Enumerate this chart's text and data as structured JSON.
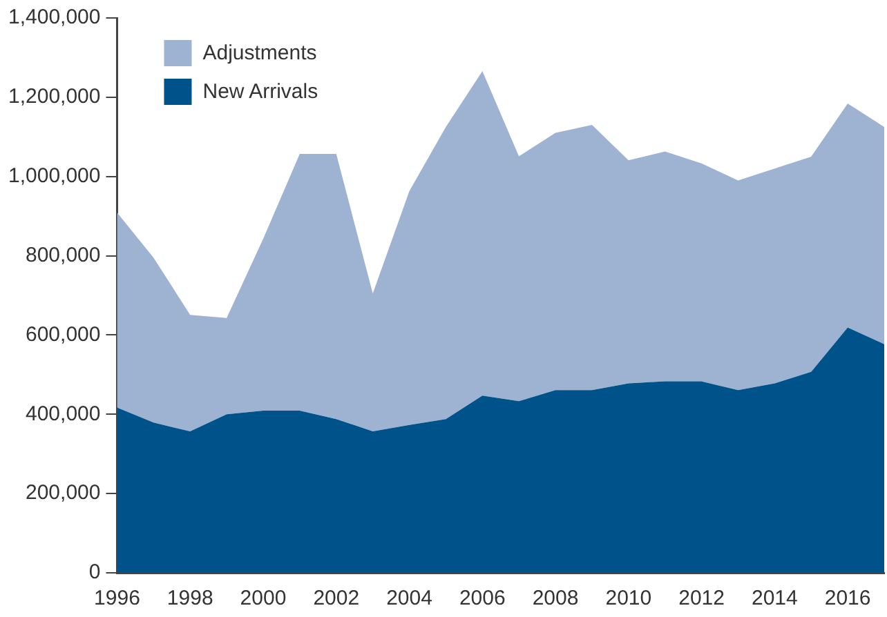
{
  "chart_data": {
    "type": "area",
    "stacked": true,
    "categories": [
      "1996",
      null,
      "1998",
      null,
      "2000",
      null,
      "2002",
      null,
      "2004",
      null,
      "2006",
      null,
      "2008",
      null,
      "2010",
      null,
      "2012",
      null,
      "2014",
      null,
      "2016",
      null
    ],
    "series": [
      {
        "name": "New Arrivals",
        "color": "#00538a",
        "values": [
          417000,
          379000,
          357000,
          400000,
          409000,
          409000,
          388000,
          357000,
          373000,
          388000,
          447000,
          433000,
          461000,
          461000,
          478000,
          483000,
          483000,
          461000,
          478000,
          507000,
          619000,
          577000
        ]
      },
      {
        "name": "Adjustments",
        "color": "#9eb3d1",
        "values": [
          492000,
          416000,
          294000,
          243000,
          434000,
          648000,
          669000,
          348000,
          590000,
          737000,
          819000,
          618000,
          649000,
          669000,
          563000,
          580000,
          550000,
          529000,
          542000,
          543000,
          565000,
          548000
        ]
      }
    ],
    "ylim": [
      0,
      1400000
    ],
    "yticks": [
      0,
      {
        "value": 200000,
        "label": "200,000"
      },
      {
        "value": 400000,
        "label": "400,000"
      },
      {
        "value": 600000,
        "label": "600,000"
      },
      {
        "value": 800000,
        "label": "800,000"
      },
      {
        "value": 1000000,
        "label": "1,000,000"
      },
      {
        "value": 1200000,
        "label": "1,200,000"
      },
      {
        "value": 1400000,
        "label": "1,400,000"
      }
    ],
    "grid": false,
    "legend": "top left"
  }
}
